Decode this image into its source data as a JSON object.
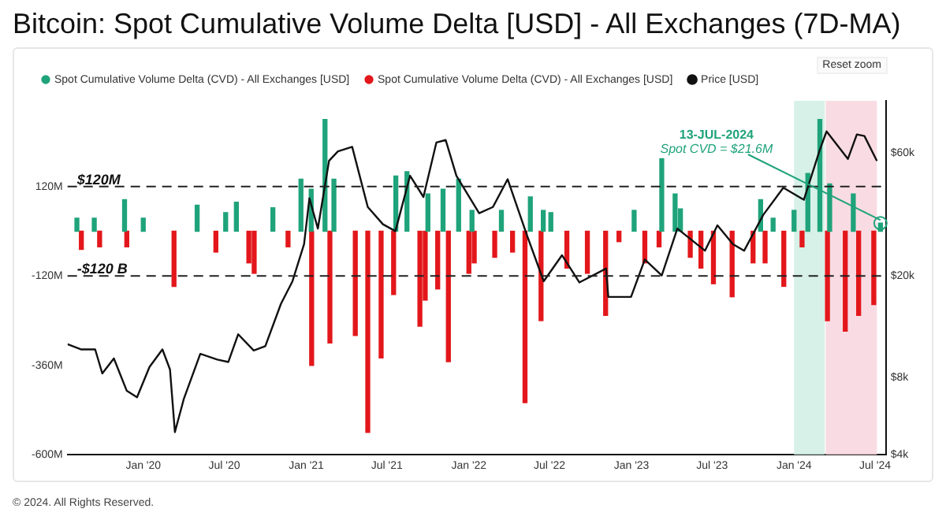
{
  "chart_data": {
    "type": "bar",
    "title": "Bitcoin: Spot Cumulative Volume Delta [USD] - All Exchanges (7D-MA)",
    "annotations": [
      "Reset zoom",
      "© 2024. All Rights Reserved.",
      {
        "text": "13-JUL-2024\nSpot CVD = $21.6M",
        "x": "2024-07-13",
        "y": 21.6
      }
    ],
    "series": [
      {
        "name": "Spot Cumulative Volume Delta (CVD) - All Exchanges [USD]",
        "color": "#1fa37a",
        "x": [
          "2019-08-05",
          "2019-09-13",
          "2019-11-20",
          "2020-01-01",
          "2020-05-01",
          "2020-07-04",
          "2020-07-28",
          "2020-10-18",
          "2020-12-20",
          "2021-01-12",
          "2021-02-12",
          "2021-03-04",
          "2021-07-21",
          "2021-08-15",
          "2021-10-01",
          "2021-11-04",
          "2021-12-09",
          "2022-01-08",
          "2022-03-15",
          "2022-05-19",
          "2022-06-17",
          "2022-07-04",
          "2023-01-07",
          "2023-03-10",
          "2023-04-09",
          "2023-04-21",
          "2023-10-18",
          "2023-11-15",
          "2024-01-01",
          "2024-02-01",
          "2024-02-28",
          "2024-03-21",
          "2024-05-13",
          "2024-07-13"
        ],
        "values": [
          35,
          35,
          85,
          35,
          70,
          50,
          78,
          63,
          140,
          113,
          300,
          140,
          148,
          160,
          100,
          113,
          140,
          56,
          56,
          92,
          56,
          50,
          56,
          195,
          100,
          60,
          85,
          35,
          56,
          155,
          300,
          127,
          100,
          21.6
        ]
      },
      {
        "name": "Spot Cumulative Volume Delta (CVD) - All Exchanges [USD]",
        "color": "#e3171b",
        "x": [
          "2019-08-15",
          "2019-09-25",
          "2019-11-25",
          "2020-03-10",
          "2020-06-12",
          "2020-08-25",
          "2020-09-06",
          "2020-11-21",
          "2021-01-13",
          "2021-02-23",
          "2021-04-21",
          "2021-05-19",
          "2021-06-18",
          "2021-07-16",
          "2021-09-13",
          "2021-09-25",
          "2021-10-23",
          "2021-11-16",
          "2022-01-01",
          "2022-01-13",
          "2022-02-28",
          "2022-04-09",
          "2022-05-07",
          "2022-06-12",
          "2022-08-09",
          "2022-09-24",
          "2022-11-04",
          "2022-12-04",
          "2023-01-31",
          "2023-03-04",
          "2023-05-13",
          "2023-06-06",
          "2023-07-04",
          "2023-08-15",
          "2023-10-01",
          "2023-10-28",
          "2023-12-09",
          "2024-01-19",
          "2024-03-16",
          "2024-04-25",
          "2024-05-25",
          "2024-06-28"
        ],
        "values": [
          -49,
          -42,
          -42,
          -148,
          -56,
          -85,
          -113,
          -42,
          -360,
          -300,
          -280,
          -540,
          -340,
          -170,
          -255,
          -185,
          -155,
          -350,
          -113,
          -85,
          -70,
          -56,
          -460,
          -240,
          -99,
          -113,
          -226,
          -28,
          -85,
          -42,
          -70,
          -99,
          -141,
          -176,
          -85,
          -85,
          -148,
          -42,
          -240,
          -268,
          -226,
          -197
        ]
      },
      {
        "name": "Price [USD]",
        "type": "line",
        "axis": "y2",
        "color": "#111111",
        "x": [
          "2019-07-15",
          "2019-08-15",
          "2019-09-15",
          "2019-10-01",
          "2019-10-27",
          "2019-11-25",
          "2019-12-18",
          "2020-01-15",
          "2020-02-13",
          "2020-03-01",
          "2020-03-12",
          "2020-04-01",
          "2020-05-08",
          "2020-06-15",
          "2020-07-10",
          "2020-08-01",
          "2020-09-05",
          "2020-10-01",
          "2020-11-05",
          "2020-12-01",
          "2020-12-27",
          "2021-01-08",
          "2021-01-27",
          "2021-02-21",
          "2021-03-13",
          "2021-04-14",
          "2021-05-19",
          "2021-06-22",
          "2021-07-20",
          "2021-08-22",
          "2021-09-21",
          "2021-10-20",
          "2021-11-10",
          "2021-12-04",
          "2022-01-24",
          "2022-02-24",
          "2022-03-29",
          "2022-05-12",
          "2022-06-18",
          "2022-07-29",
          "2022-09-06",
          "2022-11-05",
          "2022-11-10",
          "2022-12-31",
          "2023-01-31",
          "2023-03-10",
          "2023-04-14",
          "2023-06-15",
          "2023-07-13",
          "2023-08-17",
          "2023-09-11",
          "2023-10-24",
          "2023-12-08",
          "2024-01-23",
          "2024-02-28",
          "2024-03-14",
          "2024-05-01",
          "2024-05-21",
          "2024-06-07",
          "2024-07-05"
        ],
        "values": [
          10800,
          10300,
          10300,
          8300,
          9500,
          7100,
          6700,
          8800,
          10300,
          8600,
          4900,
          6600,
          9900,
          9400,
          9200,
          11800,
          10200,
          10600,
          15500,
          19000,
          26500,
          40000,
          30500,
          56000,
          61000,
          63500,
          37000,
          31700,
          29800,
          49000,
          40500,
          66000,
          67500,
          49000,
          35000,
          37000,
          47500,
          28500,
          19000,
          24000,
          18800,
          21300,
          16500,
          16500,
          23100,
          20000,
          30500,
          25000,
          31400,
          26500,
          25000,
          34500,
          44000,
          39500,
          62000,
          73000,
          57000,
          71000,
          70000,
          56000
        ]
      }
    ],
    "xlim": [
      "2019-07-15",
      "2024-07-25"
    ],
    "xticks": [
      {
        "value": "2020-01",
        "label": "Jan '20"
      },
      {
        "value": "2020-07",
        "label": "Jul '20"
      },
      {
        "value": "2021-01",
        "label": "Jan '21"
      },
      {
        "value": "2021-07",
        "label": "Jul '21"
      },
      {
        "value": "2022-01",
        "label": "Jan '22"
      },
      {
        "value": "2022-07",
        "label": "Jul '22"
      },
      {
        "value": "2023-01",
        "label": "Jan '23"
      },
      {
        "value": "2023-07",
        "label": "Jul '23"
      },
      {
        "value": "2024-01",
        "label": "Jan '24"
      },
      {
        "value": "2024-07",
        "label": "Jul '24"
      }
    ],
    "ylim": [
      -600,
      350
    ],
    "yticks": [
      {
        "value": 120,
        "label": "120M"
      },
      {
        "value": -120,
        "label": "-120M"
      },
      {
        "value": -360,
        "label": "-360M"
      },
      {
        "value": -600,
        "label": "-600M"
      }
    ],
    "y2lim": [
      4000,
      96000
    ],
    "y2ticks": [
      {
        "value": 4000,
        "label": "$4k"
      },
      {
        "value": 8000,
        "label": "$8k"
      },
      {
        "value": 20000,
        "label": "$20k"
      },
      {
        "value": 60000,
        "label": "$60k"
      }
    ],
    "log": "y2",
    "ref_lines": [
      {
        "axis": "y",
        "value": 120,
        "label": "$120M",
        "line_style": "dashed",
        "color": "#222222"
      },
      {
        "axis": "y",
        "value": -120,
        "label": "-$120 B",
        "line_style": "dashed",
        "color": "#222222"
      }
    ],
    "bands": [
      {
        "axis": "x",
        "from": "2024-01-01",
        "to": "2024-03-10",
        "color": "#cdeee2"
      },
      {
        "axis": "x",
        "from": "2024-03-12",
        "to": "2024-07-05",
        "color": "#f7d3dc"
      }
    ],
    "legend": "top left",
    "marker": "none",
    "line_style": "solid"
  }
}
